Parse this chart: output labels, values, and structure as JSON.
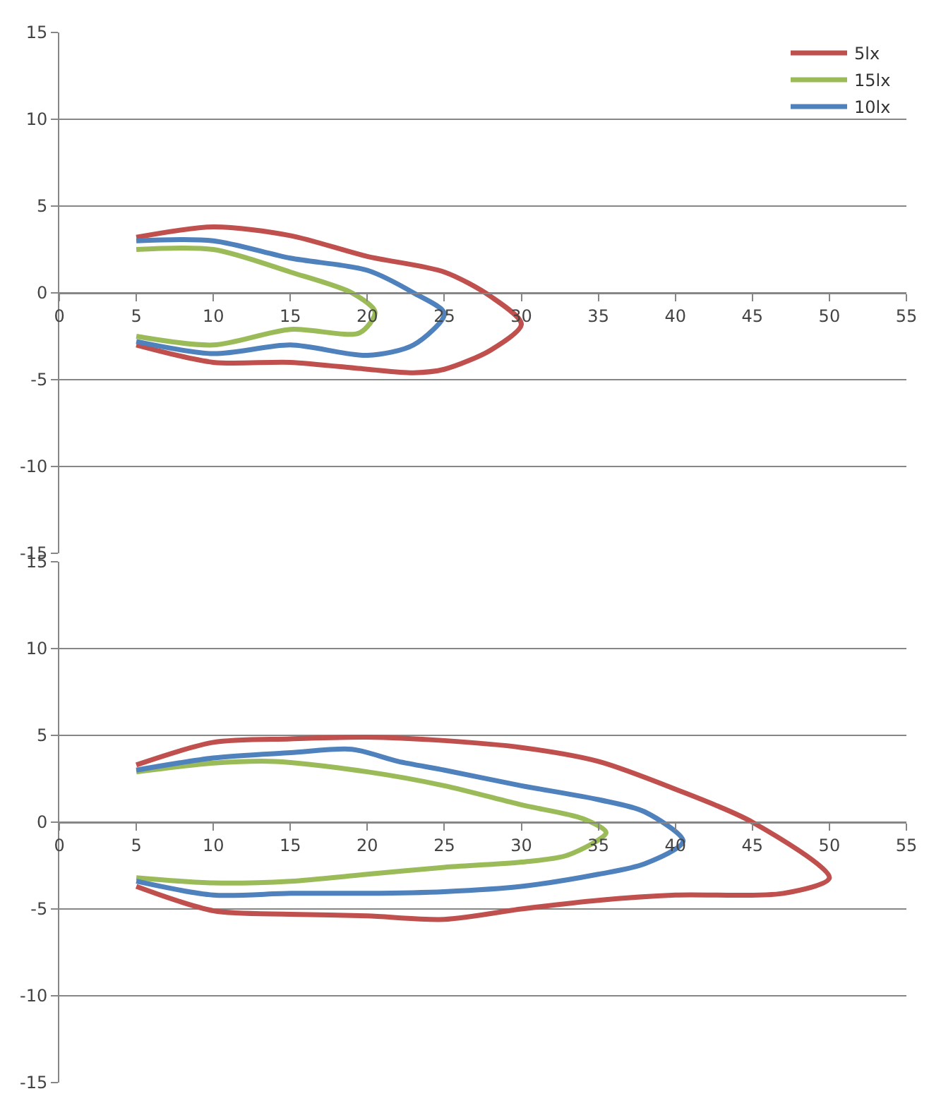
{
  "chart_data": [
    {
      "type": "line",
      "legend": "top right",
      "grid": "y",
      "marker": "none",
      "line_style": "solid",
      "xlim": [
        0,
        55
      ],
      "xticks": [
        0,
        5,
        10,
        15,
        20,
        25,
        30,
        35,
        40,
        45,
        50,
        55
      ],
      "ylim": [
        -15,
        15
      ],
      "yticks": [
        -15,
        -10,
        -5,
        0,
        5,
        10,
        15
      ],
      "series": [
        {
          "name": "5lx",
          "color": "#c0504d",
          "x": [
            5,
            10,
            15,
            20,
            25,
            28,
            30,
            28,
            25,
            23,
            20,
            15,
            10,
            5
          ],
          "values": [
            3.2,
            3.8,
            3.3,
            2.1,
            1.2,
            -0.2,
            -1.8,
            -3.3,
            -4.4,
            -4.6,
            -4.4,
            -4.0,
            -4.0,
            -3.0
          ]
        },
        {
          "name": "15lx",
          "color": "#9bbb59",
          "x": [
            5,
            10,
            15,
            19,
            20.5,
            19.5,
            15,
            10,
            5
          ],
          "values": [
            2.5,
            2.5,
            1.2,
            0,
            -1.1,
            -2.3,
            -2.1,
            -3.0,
            -2.5
          ]
        },
        {
          "name": "10lx",
          "color": "#4f81bd",
          "x": [
            5,
            10,
            15,
            20,
            23,
            25,
            23,
            20,
            15,
            10,
            5
          ],
          "values": [
            3.0,
            3.0,
            2.0,
            1.3,
            0,
            -1.2,
            -3.0,
            -3.6,
            -3.0,
            -3.5,
            -2.8
          ]
        }
      ]
    },
    {
      "type": "line",
      "grid": "y",
      "marker": "none",
      "line_style": "solid",
      "xlim": [
        0,
        55
      ],
      "xticks": [
        0,
        5,
        10,
        15,
        20,
        25,
        30,
        35,
        40,
        45,
        50,
        55
      ],
      "ylim": [
        -15,
        15
      ],
      "yticks": [
        -15,
        -10,
        -5,
        0,
        5,
        10,
        15
      ],
      "series": [
        {
          "color": "#c0504d",
          "x": [
            5,
            10,
            15,
            20,
            25,
            30,
            35,
            40,
            45,
            50,
            47,
            40,
            35,
            30,
            25,
            20,
            15,
            10,
            5
          ],
          "values": [
            3.3,
            4.6,
            4.8,
            4.9,
            4.7,
            4.3,
            3.5,
            1.9,
            0,
            -3.2,
            -4.1,
            -4.2,
            -4.5,
            -5.0,
            -5.6,
            -5.4,
            -5.3,
            -5.1,
            -3.7
          ]
        },
        {
          "color": "#9bbb59",
          "x": [
            5,
            10,
            14,
            20,
            25,
            30,
            34,
            35.5,
            33,
            30,
            25,
            20,
            15,
            10,
            5
          ],
          "values": [
            2.9,
            3.4,
            3.5,
            2.9,
            2.1,
            1.0,
            0.2,
            -0.6,
            -1.9,
            -2.3,
            -2.6,
            -3.0,
            -3.4,
            -3.5,
            -3.2
          ]
        },
        {
          "color": "#4f81bd",
          "x": [
            5,
            10,
            15,
            19,
            22,
            25,
            30,
            35,
            38,
            40.5,
            38,
            35,
            30,
            25,
            20,
            15,
            10,
            5
          ],
          "values": [
            3.0,
            3.7,
            4.0,
            4.2,
            3.5,
            3.0,
            2.1,
            1.3,
            0.6,
            -1.1,
            -2.4,
            -3.0,
            -3.7,
            -4.0,
            -4.1,
            -4.1,
            -4.2,
            -3.4
          ]
        }
      ]
    }
  ]
}
